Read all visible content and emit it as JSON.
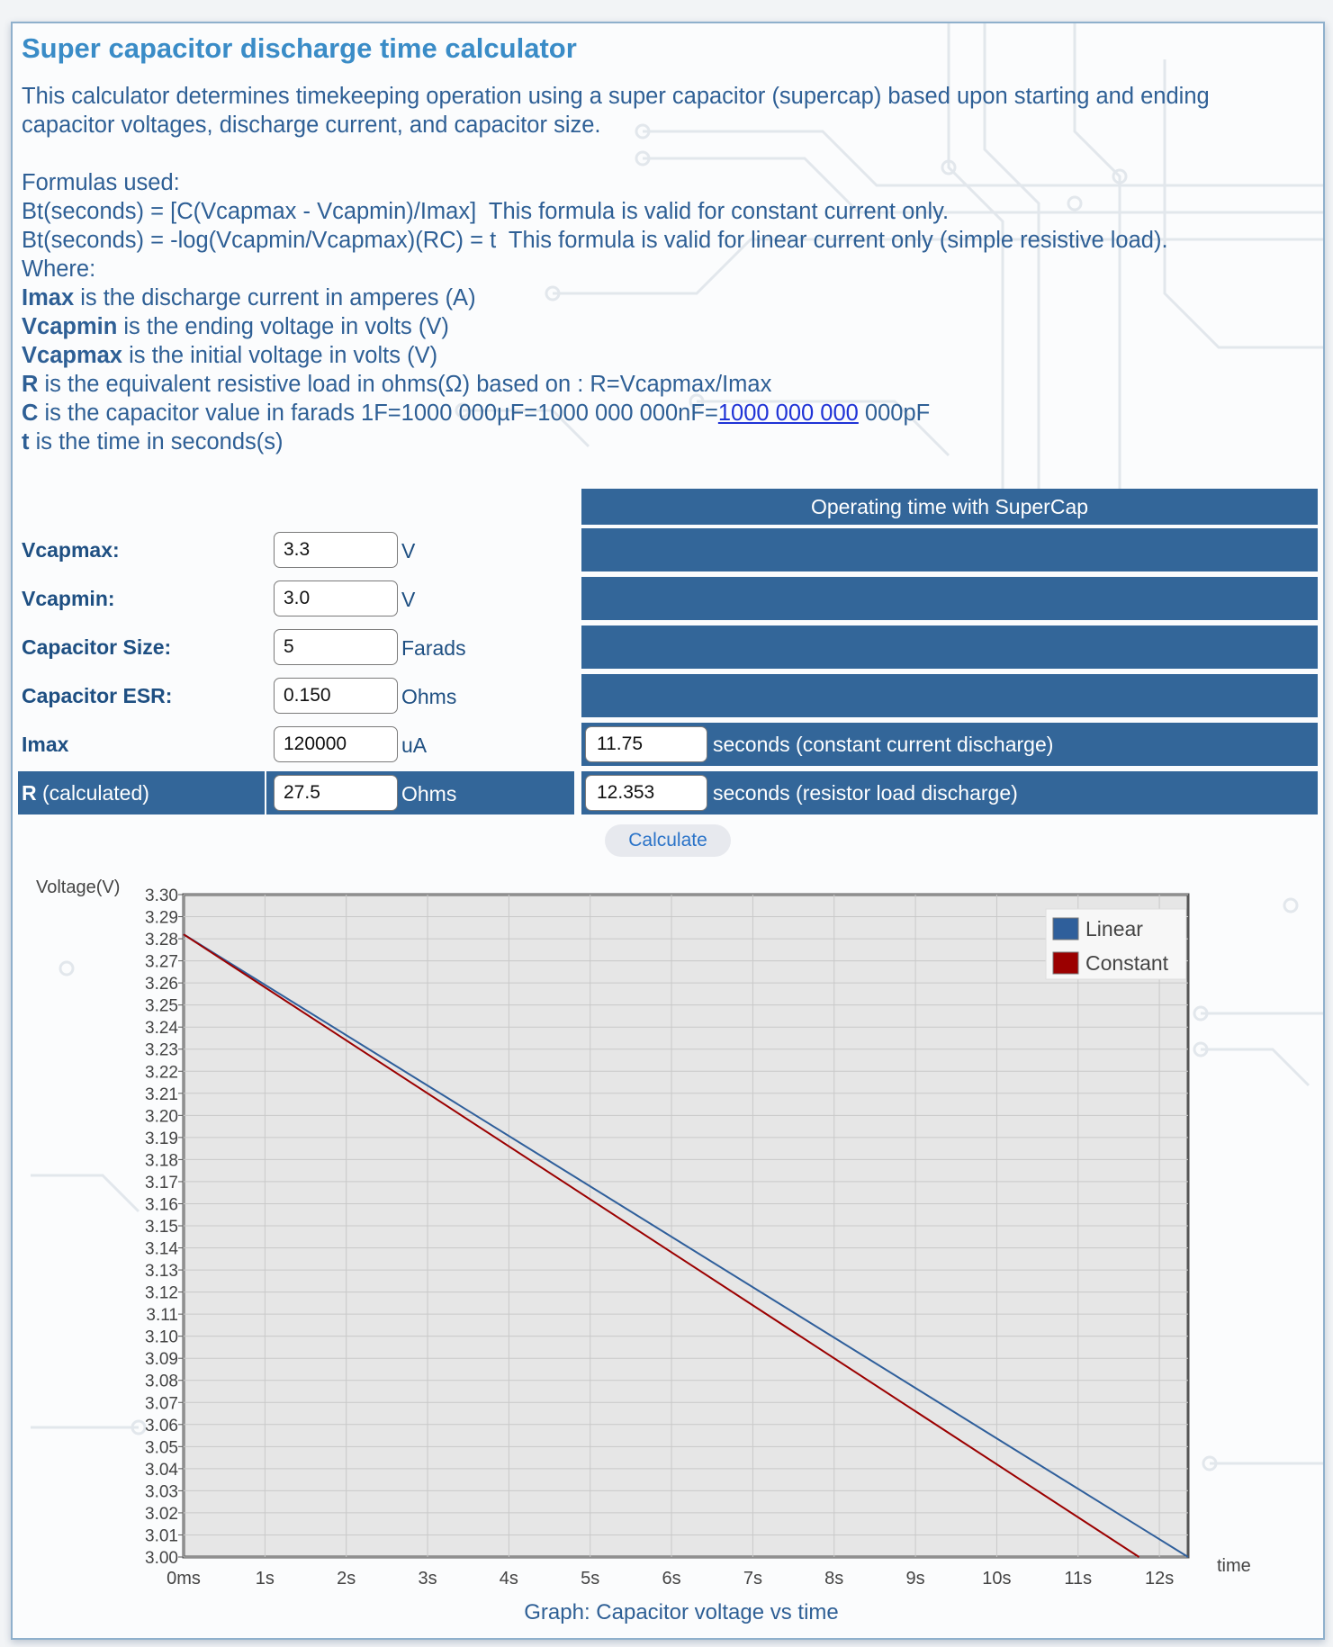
{
  "page": {
    "title": "Super capacitor discharge time calculator",
    "intro": [
      "This calculator determines timekeeping operation using a super capacitor (supercap) based upon starting and ending",
      "capacitor voltages, discharge current, and capacitor size."
    ],
    "formulas_heading": "Formulas used:",
    "formula1": "Bt(seconds) = [C(Vcapmax - Vcapmin)/Imax]  This formula is valid for constant current only.",
    "formula2": "Bt(seconds) = -log(Vcapmin/Vcapmax)(RC) = t  This formula is valid for linear current only (simple resistive load).",
    "where": "Where:",
    "defs": [
      {
        "term": "Imax",
        "text": " is the discharge current in amperes (A)"
      },
      {
        "term": "Vcapmin",
        "text": " is the ending voltage in volts (V)"
      },
      {
        "term": "Vcapmax",
        "text": " is the initial voltage in volts (V)"
      },
      {
        "term": "R",
        "text": " is the equivalent resistive load in ohms(Ω) based on : R=Vcapmax/Imax"
      }
    ],
    "def_c": {
      "term": "C",
      "text": " is the capacitor value in farads 1F=1000 000µF=1000 000 000nF=",
      "link": "1000 000 000",
      "tail": " 000pF"
    },
    "def_t": {
      "term": "t",
      "text": " is the time in seconds(s)"
    }
  },
  "form": {
    "vcapmax": {
      "label": "Vcapmax:",
      "value": "3.3",
      "unit": "V"
    },
    "vcapmin": {
      "label": "Vcapmin:",
      "value": "3.0",
      "unit": "V"
    },
    "cap_size": {
      "label": "Capacitor Size:",
      "value": "5",
      "unit": "Farads"
    },
    "cap_esr": {
      "label": "Capacitor ESR:",
      "value": "0.150",
      "unit": "Ohms"
    },
    "imax": {
      "label": "Imax",
      "value": "120000",
      "unit": "uA"
    },
    "r_calc": {
      "label_bold": "R",
      "label_rest": " (calculated)",
      "value": "27.5",
      "unit": "Ohms"
    }
  },
  "results": {
    "header": "Operating time with SuperCap",
    "constant_value": "11.75",
    "constant_text": "seconds (constant current discharge)",
    "resistor_value": "12.353",
    "resistor_text": "seconds (resistor load discharge)"
  },
  "calculate_label": "Calculate",
  "colors": {
    "accent": "#336699",
    "title": "#3a8cc7",
    "linear": "#2f5f9b",
    "constant": "#9b0000"
  },
  "chart_data": {
    "type": "line",
    "ylabel": "Voltage(V)",
    "xlabel": "time",
    "caption": "Graph: Capacitor voltage vs time",
    "ylim": [
      3.0,
      3.3
    ],
    "xlim": [
      0,
      12.353
    ],
    "y_ticks": [
      "3.30",
      "3.29",
      "3.28",
      "3.27",
      "3.26",
      "3.25",
      "3.24",
      "3.23",
      "3.22",
      "3.21",
      "3.20",
      "3.19",
      "3.18",
      "3.17",
      "3.16",
      "3.15",
      "3.14",
      "3.13",
      "3.12",
      "3.11",
      "3.10",
      "3.09",
      "3.08",
      "3.07",
      "3.06",
      "3.05",
      "3.04",
      "3.03",
      "3.02",
      "3.01",
      "3.00"
    ],
    "x_ticks": [
      {
        "label": "0ms",
        "value": 0
      },
      {
        "label": "1s",
        "value": 1
      },
      {
        "label": "2s",
        "value": 2
      },
      {
        "label": "3s",
        "value": 3
      },
      {
        "label": "4s",
        "value": 4
      },
      {
        "label": "5s",
        "value": 5
      },
      {
        "label": "6s",
        "value": 6
      },
      {
        "label": "7s",
        "value": 7
      },
      {
        "label": "8s",
        "value": 8
      },
      {
        "label": "9s",
        "value": 9
      },
      {
        "label": "10s",
        "value": 10
      },
      {
        "label": "11s",
        "value": 11
      },
      {
        "label": "12s",
        "value": 12
      }
    ],
    "legend_position": "top-right",
    "grid": true,
    "series": [
      {
        "name": "Linear",
        "color": "#2f5f9b",
        "points": [
          [
            0,
            3.282
          ],
          [
            12.353,
            3.0
          ]
        ]
      },
      {
        "name": "Constant",
        "color": "#9b0000",
        "points": [
          [
            0,
            3.282
          ],
          [
            11.75,
            3.0
          ]
        ]
      }
    ]
  }
}
